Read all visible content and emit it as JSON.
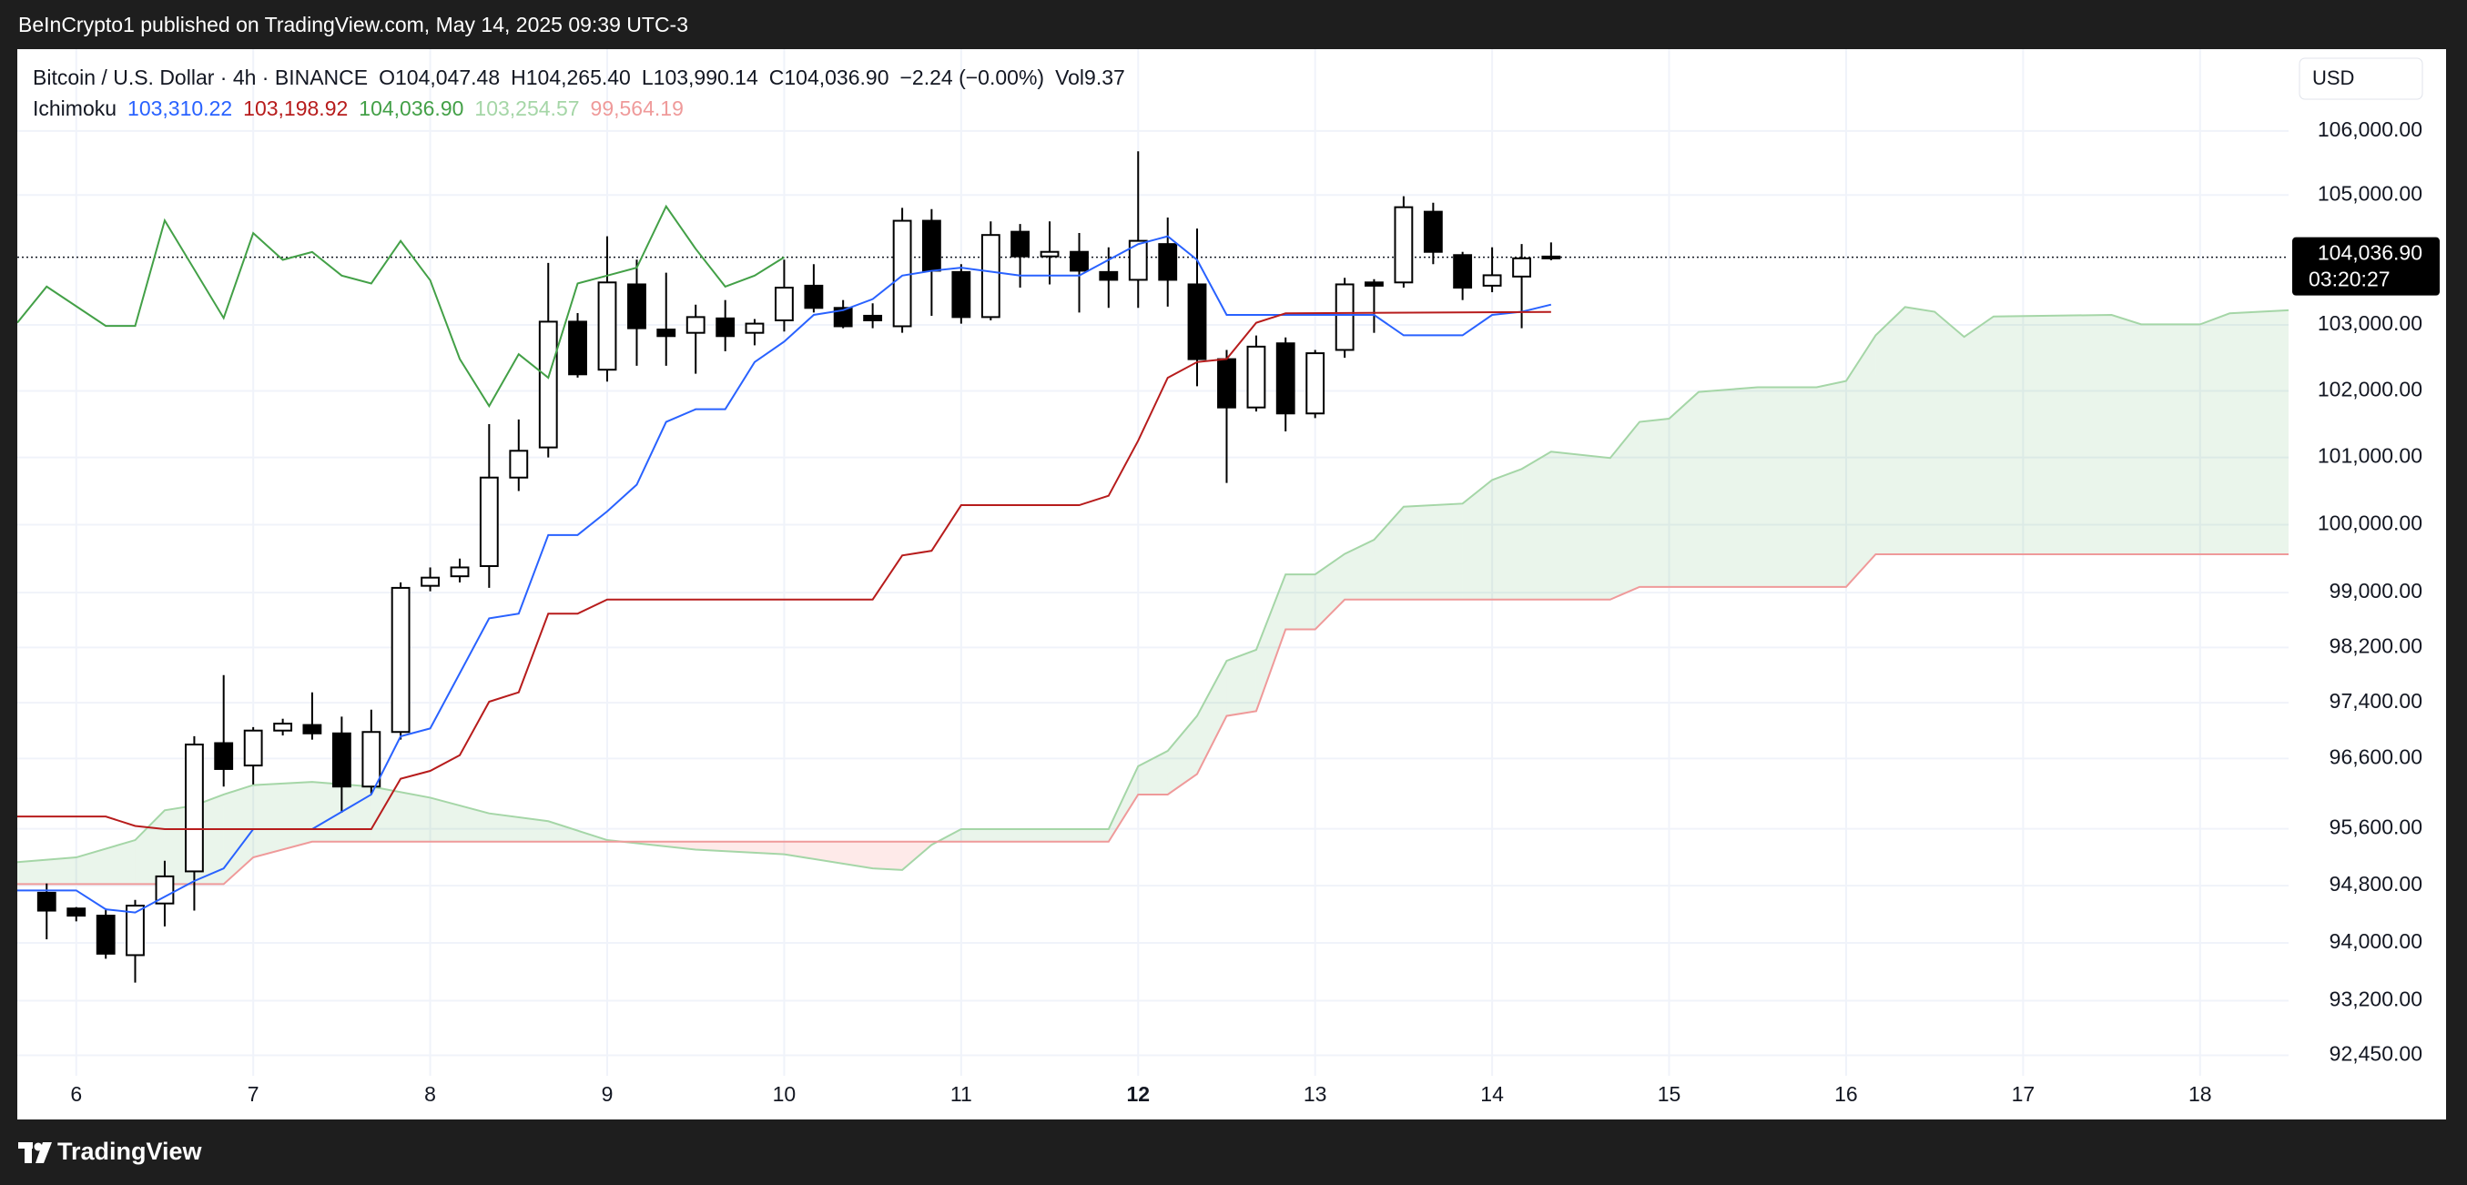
{
  "header": {
    "text": "BeInCrypto1 published on TradingView.com, May 14, 2025 09:39 UTC-3"
  },
  "footer": {
    "logo": "TradingView"
  },
  "chart_data": {
    "type": "candlestick",
    "title": "Bitcoin / U.S. Dollar · 4h · BINANCE",
    "quote": [
      "O104,047.48",
      "H104,265.40",
      "L103,990.14",
      "C104,036.90",
      "−2.24 (−0.00%)",
      "Vol9.37"
    ],
    "indicator": {
      "name": "Ichimoku",
      "values": [
        {
          "label": "103,310.22",
          "color": "#2962ff"
        },
        {
          "label": "103,198.92",
          "color": "#b71c1c"
        },
        {
          "label": "104,036.90",
          "color": "#43a047"
        },
        {
          "label": "103,254.57",
          "color": "#a5d6a7"
        },
        {
          "label": "99,564.19",
          "color": "#ef9a9a"
        }
      ]
    },
    "currency": "USD",
    "x": [
      5.833,
      6,
      6.167,
      6.333,
      6.5,
      6.667,
      6.833,
      7,
      7.167,
      7.333,
      7.5,
      7.667,
      7.833,
      8,
      8.167,
      8.333,
      8.5,
      8.667,
      8.833,
      9,
      9.167,
      9.333,
      9.5,
      9.667,
      9.833,
      10,
      10.167,
      10.333,
      10.5,
      10.667,
      10.833,
      11,
      11.167,
      11.333,
      11.5,
      11.667,
      11.833,
      12,
      12.167,
      12.333,
      12.5,
      12.667,
      12.833,
      13,
      13.167,
      13.333,
      13.5,
      13.667,
      13.833,
      14,
      14.167,
      14.333
    ],
    "open": [
      94700,
      94480,
      94380,
      93830,
      94550,
      95000,
      96820,
      96500,
      97000,
      97080,
      96960,
      96200,
      96980,
      99100,
      99240,
      99390,
      100700,
      101150,
      103050,
      102320,
      103620,
      102930,
      102880,
      103100,
      102880,
      103070,
      103600,
      103260,
      103140,
      102980,
      104600,
      103810,
      103120,
      104430,
      104050,
      104120,
      103810,
      103690,
      104240,
      103620,
      102480,
      101750,
      102720,
      101660,
      102620,
      103650,
      103650,
      104740,
      104070,
      103600,
      103740,
      104047.48
    ],
    "high": [
      94830,
      94500,
      94480,
      94600,
      95150,
      96920,
      97800,
      97050,
      97170,
      97550,
      97200,
      97300,
      99150,
      99370,
      99500,
      101500,
      101570,
      103950,
      103180,
      104360,
      104000,
      103800,
      103310,
      103380,
      103090,
      104000,
      103930,
      103380,
      103330,
      104800,
      104780,
      103930,
      104590,
      104550,
      104590,
      104410,
      104190,
      105680,
      104650,
      104480,
      102620,
      102840,
      102810,
      102620,
      103720,
      103700,
      104980,
      104880,
      104120,
      104190,
      104240,
      104265.4
    ],
    "low": [
      94050,
      94300,
      93780,
      93450,
      94230,
      94450,
      96200,
      96230,
      96930,
      96870,
      95830,
      96100,
      96870,
      99020,
      99150,
      99070,
      100500,
      101000,
      102200,
      102140,
      102380,
      102380,
      102260,
      102600,
      102690,
      102900,
      103190,
      102950,
      102950,
      102880,
      103140,
      103020,
      103070,
      103570,
      103620,
      103190,
      103260,
      103260,
      103280,
      102070,
      100620,
      101690,
      101390,
      101590,
      102500,
      102880,
      103570,
      103930,
      103380,
      103500,
      102950,
      103990.14
    ],
    "close": [
      94450,
      94380,
      93850,
      94520,
      94930,
      96800,
      96450,
      97000,
      97100,
      96960,
      96200,
      96980,
      99070,
      99220,
      99370,
      100700,
      101100,
      103050,
      102250,
      103650,
      102950,
      102830,
      103120,
      102830,
      103020,
      103570,
      103260,
      102980,
      103070,
      104600,
      103830,
      103120,
      104380,
      104050,
      104120,
      103830,
      103690,
      104290,
      103690,
      102480,
      101750,
      102670,
      101660,
      102570,
      103620,
      103600,
      104810,
      104120,
      103570,
      103760,
      104020,
      104036.9
    ],
    "up_color": "#ffffff",
    "down_color": "#000000",
    "wick_color": "#000000",
    "lines": [
      {
        "color": "#2962ff",
        "x": [
          5.667,
          6,
          6.167,
          6.333,
          6.5,
          6.667,
          6.833,
          7,
          7.333,
          7.667,
          7.833,
          8,
          8.167,
          8.333,
          8.5,
          8.667,
          8.833,
          9,
          9.167,
          9.333,
          9.5,
          9.667,
          9.833,
          10,
          10.167,
          10.333,
          10.5,
          10.667,
          10.833,
          11,
          11.333,
          11.667,
          11.833,
          12,
          12.167,
          12.333,
          12.5,
          13,
          13.333,
          13.5,
          13.833,
          14,
          14.167,
          14.333
        ],
        "values": [
          94733,
          94733,
          94468,
          94424,
          94644,
          94865,
          95042,
          95596,
          95596,
          96087,
          96918,
          97031,
          97826,
          98624,
          98693,
          99848,
          99848,
          100197,
          100594,
          101533,
          101723,
          101723,
          102436,
          102746,
          103153,
          103225,
          103394,
          103755,
          103828,
          103876,
          103755,
          103755,
          103997,
          104239,
          104360,
          103997,
          103153,
          103153,
          103153,
          102842,
          102842,
          103153,
          103201,
          103310.22
        ]
      },
      {
        "color": "#b71c1c",
        "x": [
          5.667,
          6.167,
          6.333,
          6.5,
          7.667,
          7.833,
          8,
          8.167,
          8.333,
          8.5,
          8.667,
          8.833,
          9,
          10.5,
          10.667,
          10.833,
          11,
          11.667,
          11.833,
          12,
          12.167,
          12.333,
          12.5,
          12.667,
          12.833,
          14.333
        ],
        "values": [
          95774,
          95774,
          95641,
          95596,
          95596,
          96311,
          96423,
          96647,
          97415,
          97551,
          98693,
          98693,
          98899,
          98899,
          99546,
          99615,
          100290,
          100290,
          100430,
          101251,
          102198,
          102436,
          102483,
          103033,
          103177,
          103198.92
        ]
      },
      {
        "color": "#43a047",
        "x": [
          5.667,
          5.833,
          6.167,
          6.333,
          6.5,
          6.833,
          7,
          7.167,
          7.333,
          7.5,
          7.667,
          7.833,
          8,
          8.167,
          8.333,
          8.5,
          8.667,
          8.833,
          9,
          9.167,
          9.333,
          9.5,
          9.667,
          9.833,
          10
        ],
        "values": [
          103033,
          103586,
          102985,
          102985,
          104604,
          103105,
          104409,
          103997,
          104118,
          103755,
          103634,
          104288,
          103683,
          102483,
          101771,
          102555,
          102198,
          103634,
          103755,
          103876,
          104823,
          104166,
          103586,
          103755,
          104036.9
        ]
      }
    ],
    "cloud": {
      "x": [
        5.667,
        6,
        6.333,
        6.5,
        6.667,
        6.833,
        7,
        7.333,
        7.667,
        8,
        8.333,
        8.667,
        9,
        9.5,
        10,
        10.5,
        10.667,
        10.833,
        11,
        11.833,
        12,
        12.167,
        12.333,
        12.5,
        12.667,
        12.833,
        13,
        13.167,
        13.333,
        13.5,
        13.833,
        14,
        14.167,
        14.333,
        14.667,
        14.833,
        15,
        15.167,
        15.5,
        15.833,
        16,
        16.167,
        16.333,
        16.5,
        16.667,
        16.833,
        17.5,
        17.667,
        18,
        18.167,
        18.5
      ],
      "span_a": {
        "color": "#a5d6a7",
        "values": [
          95130,
          95197,
          95441,
          95863,
          95930,
          96087,
          96221,
          96266,
          96199,
          96042,
          95819,
          95708,
          95441,
          95307,
          95241,
          95042,
          95020,
          95374,
          95596,
          95596,
          96490,
          96709,
          97211,
          98006,
          98166,
          99268,
          99268,
          99569,
          99778,
          100267,
          100313,
          100664,
          100828,
          101086,
          100992,
          101533,
          101581,
          101984,
          102055,
          102055,
          102150,
          102842,
          103273,
          103201,
          102818,
          103129,
          103153,
          103009,
          103009,
          103177,
          103225
        ]
      },
      "span_b": {
        "color": "#ef9a9a",
        "values": [
          94821,
          94821,
          94821,
          94821,
          94821,
          94821,
          95197,
          95419,
          95419,
          95419,
          95419,
          95419,
          95419,
          95419,
          95419,
          95419,
          95419,
          95419,
          95419,
          95419,
          96087,
          96087,
          96378,
          97211,
          97279,
          98463,
          98463,
          98899,
          98899,
          98899,
          98899,
          98899,
          98899,
          98899,
          98899,
          99084,
          99084,
          99084,
          99084,
          99084,
          99084,
          99564.19,
          99564.19,
          99564.19,
          99564.19,
          99564.19,
          99564.19,
          99564.19,
          99564.19,
          99564.19,
          99564.19
        ]
      },
      "up_fill": "rgba(67,160,71,0.11)",
      "down_fill": "rgba(244,67,54,0.11)"
    },
    "last_price": {
      "value": 104036.9,
      "label": "104,036.90",
      "countdown": "03:20:27"
    },
    "xlim": [
      5.667,
      18.5
    ],
    "xticks": [
      6,
      7,
      8,
      9,
      10,
      11,
      12,
      13,
      14,
      15,
      16,
      17,
      18
    ],
    "highlight_xtick": 12,
    "ylim": [
      92170,
      107290
    ],
    "log_y": true,
    "yticks": [
      {
        "value": 106000,
        "label": "106,000.00"
      },
      {
        "value": 105000,
        "label": "105,000.00"
      },
      {
        "value": 103000,
        "label": "103,000.00"
      },
      {
        "value": 102000,
        "label": "102,000.00"
      },
      {
        "value": 101000,
        "label": "101,000.00"
      },
      {
        "value": 100000,
        "label": "100,000.00"
      },
      {
        "value": 99000,
        "label": "99,000.00"
      },
      {
        "value": 98200,
        "label": "98,200.00"
      },
      {
        "value": 97400,
        "label": "97,400.00"
      },
      {
        "value": 96600,
        "label": "96,600.00"
      },
      {
        "value": 95600,
        "label": "95,600.00"
      },
      {
        "value": 94800,
        "label": "94,800.00"
      },
      {
        "value": 94000,
        "label": "94,000.00"
      },
      {
        "value": 93200,
        "label": "93,200.00"
      },
      {
        "value": 92450,
        "label": "92,450.00"
      }
    ],
    "grid": true
  }
}
